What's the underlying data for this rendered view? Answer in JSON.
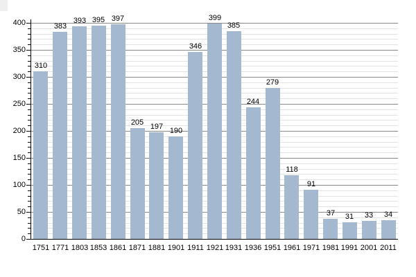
{
  "chart_data": {
    "type": "bar",
    "title": "",
    "xlabel": "",
    "ylabel": "",
    "categories": [
      "1751",
      "1771",
      "1803",
      "1853",
      "1861",
      "1871",
      "1881",
      "1901",
      "1911",
      "1921",
      "1931",
      "1936",
      "1951",
      "1961",
      "1971",
      "1981",
      "1991",
      "2001",
      "2011"
    ],
    "values": [
      310,
      383,
      393,
      395,
      397,
      205,
      197,
      190,
      346,
      399,
      385,
      244,
      279,
      118,
      91,
      37,
      31,
      33,
      34
    ],
    "value_labels": [
      "310",
      "383",
      "393",
      "395",
      "397",
      "205",
      "197",
      "190",
      "346",
      "399",
      "385",
      "244",
      "279",
      "118",
      "91",
      "37",
      "31",
      "33",
      "34"
    ],
    "ylim": [
      0,
      400
    ],
    "yticks": [
      0,
      50,
      100,
      150,
      200,
      250,
      300,
      350,
      400
    ],
    "ytick_labels": [
      "0",
      "50",
      "100",
      "150",
      "200",
      "250",
      "300",
      "350",
      "400"
    ],
    "minor_tick_step": 10,
    "grid": "major-and-minor-horizontal",
    "legend_position": "none",
    "colors": {
      "bar_fill": "#a4b9cf",
      "major_grid": "#888888",
      "minor_grid": "#e2e2e2",
      "axis": "#000000",
      "text": "#000000",
      "background": "#ffffff",
      "corner_artifact": "#efefef"
    }
  }
}
